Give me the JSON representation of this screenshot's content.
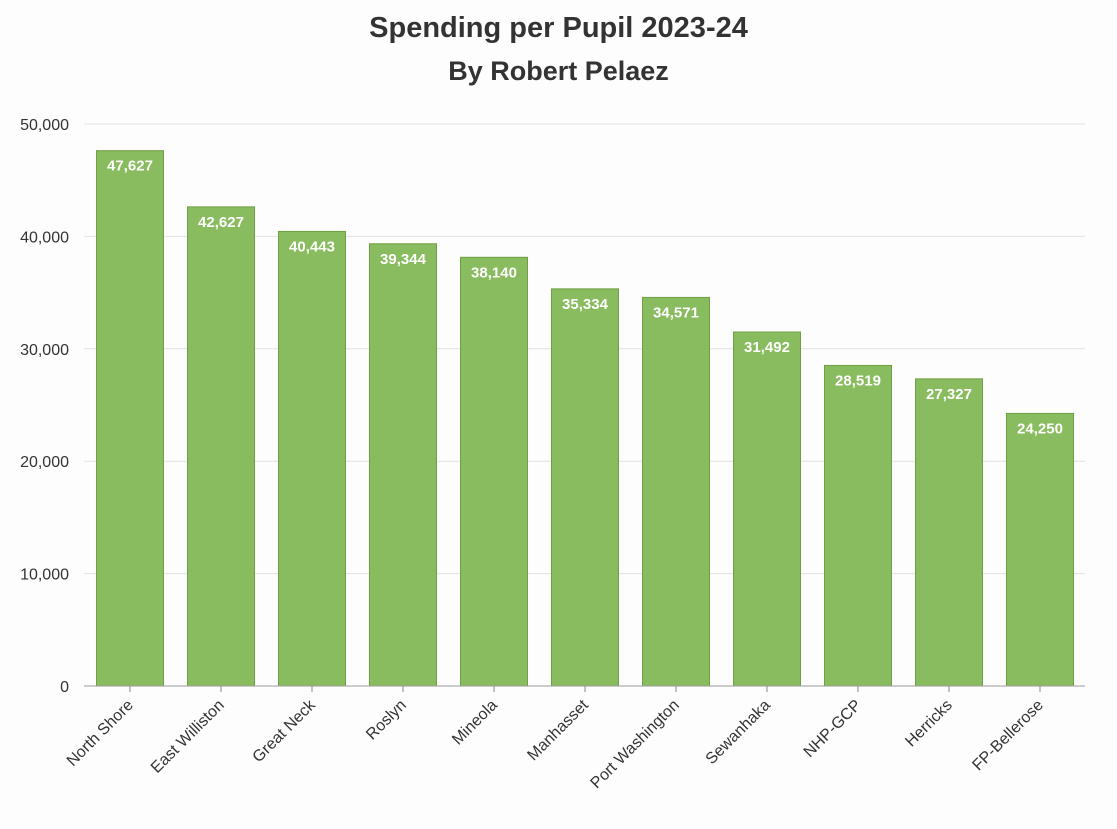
{
  "chart_data": {
    "type": "bar",
    "title": "Spending per Pupil 2023-24",
    "subtitle": "By Robert Pelaez",
    "xlabel": "",
    "ylabel": "",
    "ylim": [
      0,
      50000
    ],
    "yticks": [
      0,
      10000,
      20000,
      30000,
      40000,
      50000
    ],
    "ytick_labels": [
      "0",
      "10,000",
      "20,000",
      "30,000",
      "40,000",
      "50,000"
    ],
    "grid": true,
    "bar_color": "#89bc5e",
    "bar_edge_color": "#6f9f45",
    "categories": [
      "North Shore",
      "East Williston",
      "Great Neck",
      "Roslyn",
      "Mineola",
      "Manhasset",
      "Port Washington",
      "Sewanhaka",
      "NHP-GCP",
      "Herricks",
      "FP-Bellerose"
    ],
    "values": [
      47627,
      42627,
      40443,
      39344,
      38140,
      35334,
      34571,
      31492,
      28519,
      27327,
      24250
    ],
    "value_labels": [
      "47,627",
      "42,627",
      "40,443",
      "39,344",
      "38,140",
      "35,334",
      "34,571",
      "31,492",
      "28,519",
      "27,327",
      "24,250"
    ]
  }
}
